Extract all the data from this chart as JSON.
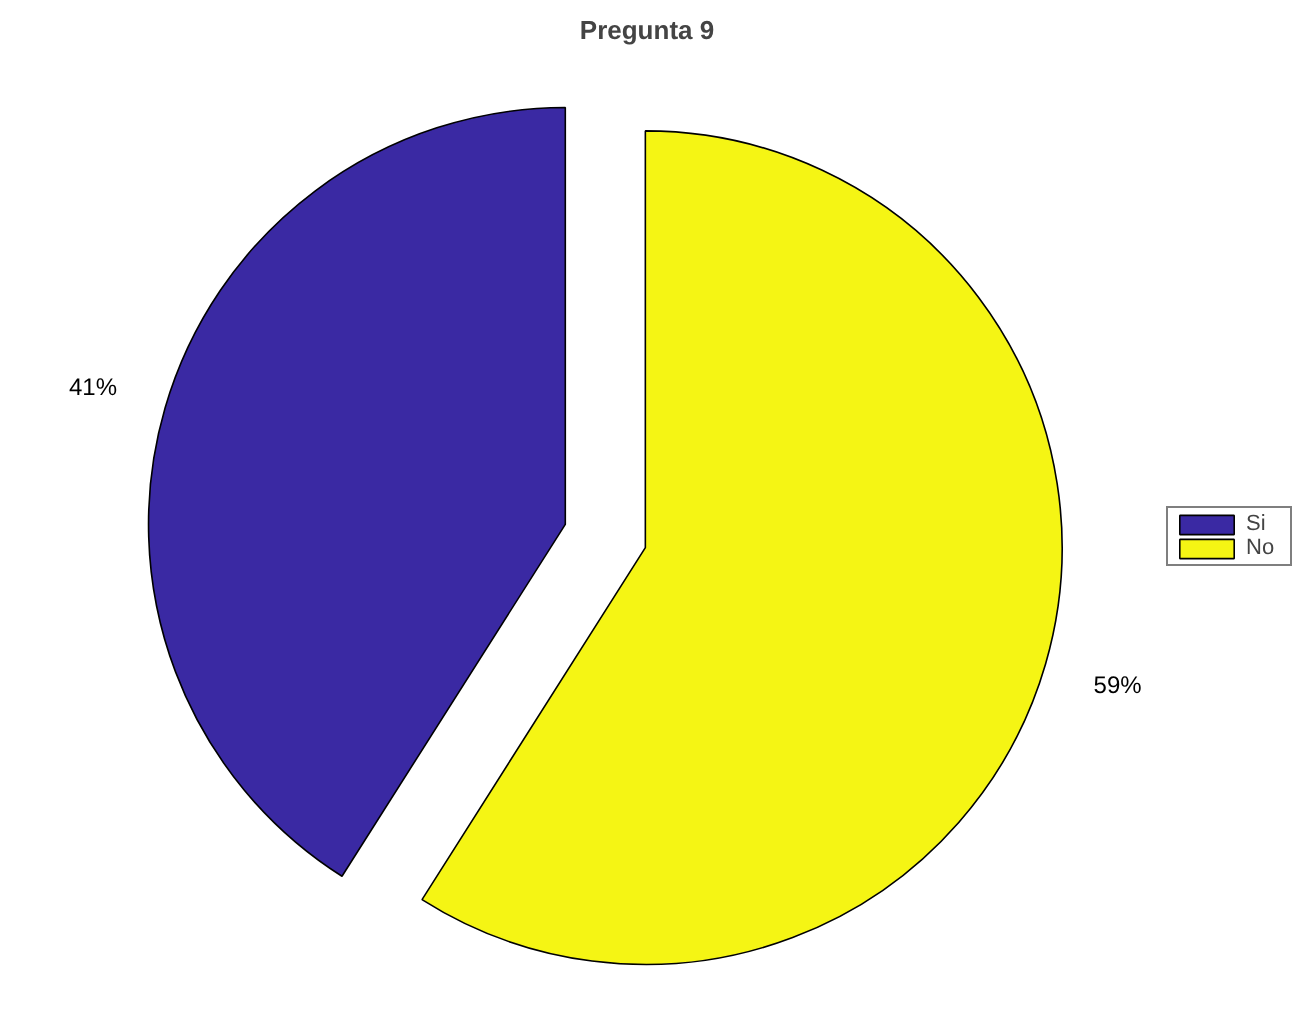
{
  "chart_data": {
    "type": "pie",
    "title": "Pregunta 9",
    "categories": [
      "Si",
      "No"
    ],
    "values": [
      41,
      59
    ],
    "colors": [
      "#3a29a3",
      "#f5f514"
    ],
    "value_labels": [
      "41%",
      "59%"
    ],
    "legend": "right"
  }
}
